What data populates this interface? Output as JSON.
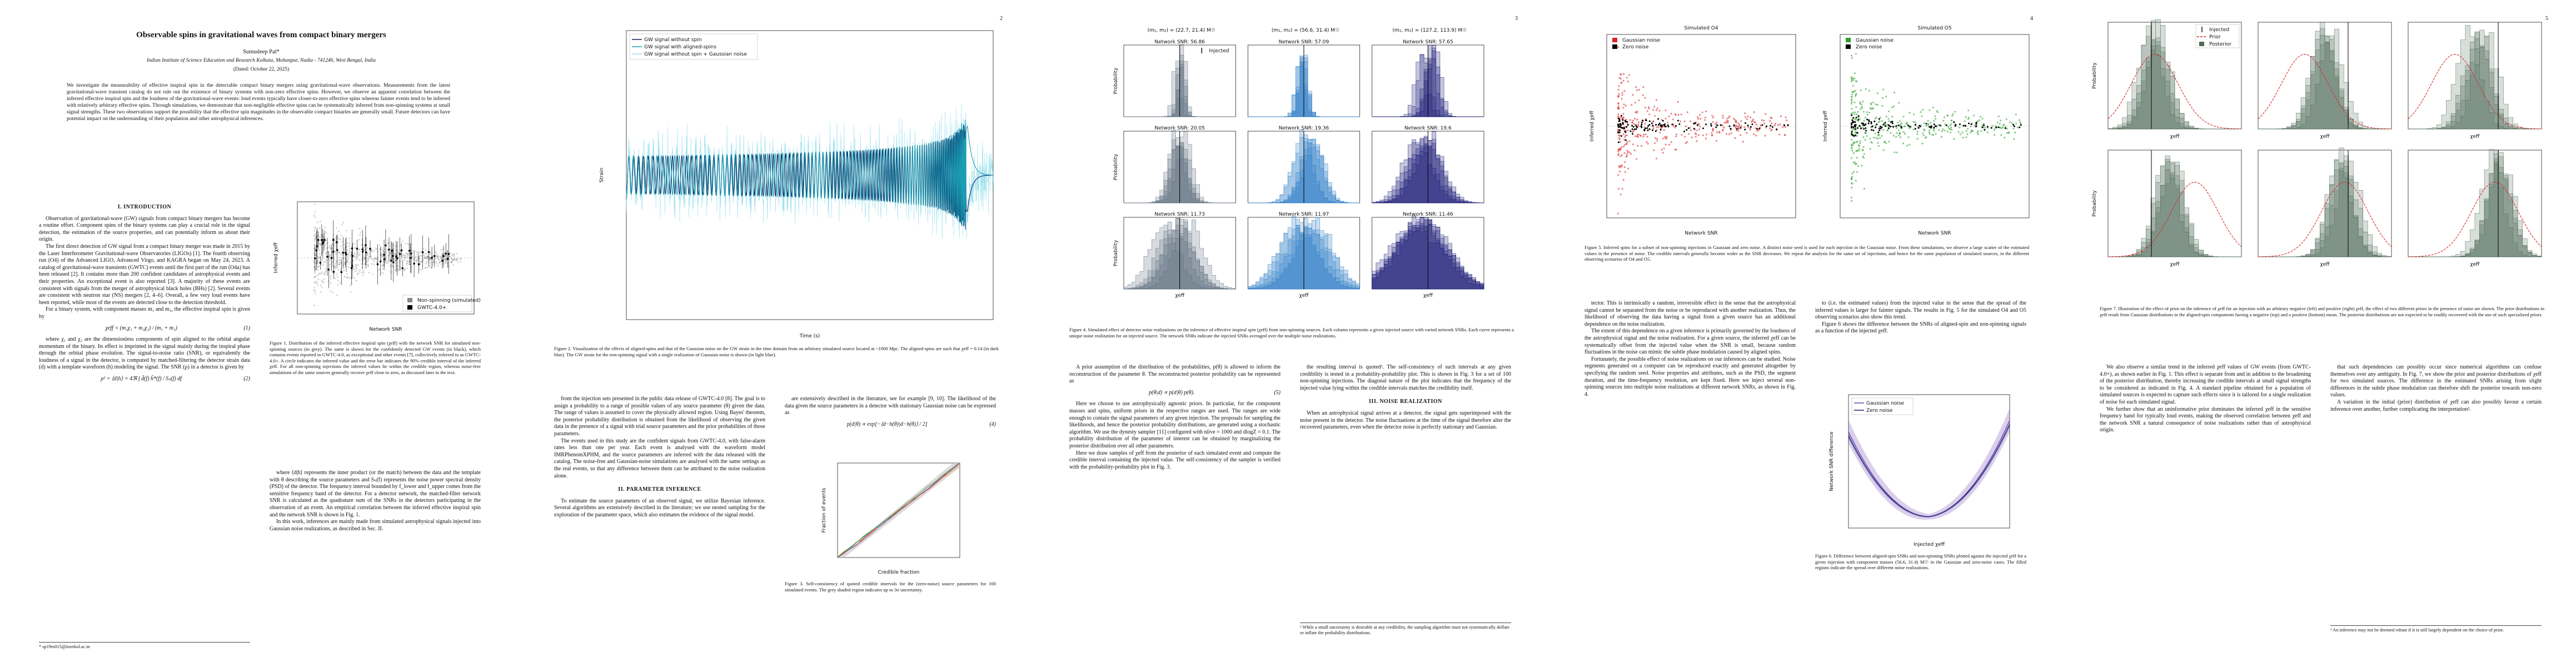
{
  "sidebar": "arXiv:2510.17449v1 [gr-qc] 20 Oct 2025",
  "pages": [
    {
      "title": "Observable spins in gravitational waves from compact binary mergers",
      "author": "Sumudeep Pal*",
      "affiliation": "Indian Institute of Science Education and Research Kolkata, Mohanpur, Nadia - 741246, West Bengal, India",
      "date": "(Dated: October 22, 2025)",
      "abstract": "We investigate the measurability of effective inspiral spin in the detectable compact binary mergers using gravitational-wave observations. Measurements from the latest gravitational-wave transient catalog do not rule out the existence of binary systems with non-zero effective spins. However, we observe an apparent correlation between the inferred effective inspiral spin and the loudness of the gravitational-wave events: loud events typically have closer-to-zero effective spins whereas fainter events tend to be inferred with relatively arbitrary effective spins. Through simulations, we demonstrate that non-negligible effective spins can be systematically inferred from non-spinning systems at small signal strengths. These two observations support the possibility that the effective spin magnitudes in the observable compact binaries are generally small. Future detectors can have potential impact on the understanding of their population and other astrophysical inferences.",
      "columns": [
        [
          {
            "heading": "I. INTRODUCTION"
          },
          {
            "text": "Observation of gravitational-wave (GW) signals from compact binary mergers has become a routine effort. Component spins of the binary systems can play a crucial role in the signal detection, the estimation of the source properties, and can potentially inform us about their origin."
          },
          {
            "text": "The first direct detection of GW signal from a compact binary merger was made in 2015 by the Laser Interferometer Gravitational-wave Observatories (LIGOs) [1]. The fourth observing run (O4) of the Advanced LIGO, Advanced Virgo, and KAGRA began on May 24, 2023. A catalog of gravitational-wave transients (GWTC) events until the first part of the run (O4a) has been released [2]. It contains more than 200 confident candidates of astrophysical events and their properties. An exceptional event is also reported [3]. A majority of these events are consistent with signals from the merger of astrophysical black holes (BHs) [2]. Several events are consistent with neutron star (NS) mergers [2, 4–6]. Overall, a few very loud events have been reported, while most of the events are detected close to the detection threshold."
          },
          {
            "text": "For a binary system, with component masses m₁ and m₂, the effective inspiral spin is given by"
          },
          {
            "equation": "χeff = (m₁χ₁ + m₂χ₂) / (m₁ + m₂)",
            "tag": "(1)"
          },
          {
            "text": "where χ₁ and χ₂ are the dimensionless components of spin aligned to the orbital angular momentum of the binary. Its effect is imprinted in the signal mainly during the inspiral phase through the orbital phase evolution. The signal-to-noise ratio (SNR), or equivalently the loudness of a signal in the detector, is computed by matched-filtering the detector strain data (d) with a template waveform (h) modeling the signal. The SNR (ρ) in a detector is given by"
          },
          {
            "equation": "ρ² = ⟨d|h⟩ = 4ℜ ∫ d̃(f) h̃*(f) / Sₙ(f) df",
            "tag": "(2)"
          }
        ],
        [
          {
            "text": "where ⟨d|h⟩ represents the inner product (or the match) between the data and the template with θ describing the source parameters and Sₙ(f) represents the noise power spectral density (PSD) of the detector. The frequency interval bounded by f_lower and f_upper comes from the sensitive frequency band of the detector. For a detector network, the matched-filter network SNR is calculated as the quadrature sum of the SNRs in the detectors participating in the observation of an event. An empirical correlation between the inferred effective inspiral spin and the network SNR is shown in Fig. 1."
          },
          {
            "text": "In this work, inferences are mainly made from simulated astrophysical signals injected into Gaussian noise realizations, as described in Sec. II."
          }
        ]
      ],
      "figures": [
        {
          "caption": "Figure 1. Distribution of the inferred effective inspiral spin (χeff) with the network SNR for simulated non-spinning sources (in grey). The same is shown for the confidently detected GW events (in black), which contains events reported in GWTC-4.0, as exceptional and other events [7], collectively referred to as GWTC-4.0+. A circle indicates the inferred value and the error bar indicates the 90% credible interval of the inferred χeff. For all non-spinning injections the inferred values lie within the credible region, whereas noise-free simulations of the same sources generally recover χeff close to zero, as discussed later in the text.",
          "xlabel": "Network SNR",
          "ylabel": "Inferred χeff",
          "legend": [
            "Non-spinning (simulated)",
            "GWTC-4.0+"
          ]
        }
      ],
      "footnotes": [
        "* sp19rs015@iiserkol.ac.in"
      ]
    },
    {
      "number": "2",
      "columns": [
        [
          {
            "text": "from the injection sets presented in the public data release of GWTC-4.0 [8]. The goal is to assign a probability to a range of possible values of any source parameter (θ) given the data. The range of values is assumed to cover the physically allowed region. Using Bayes' theorem, the posterior probability distribution is obtained from the likelihood of observing the given data in the presence of a signal with trial source parameters and the prior probabilities of those parameters."
          },
          {
            "text": "The events used in this study are the confident signals from GWTC-4.0, with false-alarm rates less than one per year. Each event is analysed with the waveform model IMRPhenomXPHM, and the source parameters are inferred with the data released with the catalog. The noise-free and Gaussian-noise simulations are analysed with the same settings as the real events, so that any difference between them can be attributed to the noise realization alone."
          },
          {
            "heading": "II. PARAMETER INFERENCE"
          },
          {
            "text": "To estimate the source parameters of an observed signal, we utilize Bayesian inference. Several algorithms are extensively described in the literature; we use nested sampling for the exploration of the parameter space, which also estimates the evidence of the signal model."
          }
        ],
        [
          {
            "text": "are extensively described in the literature, see for example [9, 10]. The likelihood of the data given the source parameters in a detector with stationary Gaussian noise can be expressed as"
          },
          {
            "equation": "p(d|θ) ∝ exp[−⟨d−h(θ)|d−h(θ)⟩ / 2]",
            "tag": "(4)"
          }
        ]
      ],
      "figures": [
        {
          "caption": "Figure 2. Visualization of the effects of aligned-spins and that of the Gaussian noise on the GW strain in the time domain from an arbitrary simulated source located at ~1000 Mpc. The aligned-spins are such that χeff = 0.14 (in dark blue). The GW strain for the non-spinning signal with a single realization of Gaussian noise is shown (in light blue).",
          "xlabel": "Time (s)",
          "ylabel": "Strain",
          "legend": [
            "GW signal without spin",
            "GW signal with aligned-spins",
            "GW signal without spin + Gaussian noise"
          ]
        },
        {
          "caption": "Figure 3. Self-consistency of quoted credible intervals for the (zero-noise) source parameters for 100 simulated events. The grey shaded region indicates up to 3σ uncertainty.",
          "xlabel": "Credible fraction",
          "ylabel": "Fraction of events"
        }
      ]
    },
    {
      "number": "3",
      "columns": [
        [
          {
            "text": "A prior assumption of the distribution of the probabilities, p(θ) is allowed to inform the reconstruction of the parameter θ. The reconstructed posterior probability can be represented as"
          },
          {
            "equation": "p(θ|d) ∝ p(d|θ) p(θ).",
            "tag": "(5)"
          },
          {
            "text": "Here we choose to use astrophysically agnostic priors. In particular, for the component masses and spins, uniform priors in the respective ranges are used. The ranges are wide enough to contain the signal parameters of any given injection. The proposals for sampling the likelihoods, and hence the posterior probability distributions, are generated using a stochastic algorithm. We use the dynesty sampler [11] configured with nlive = 1000 and dlogZ = 0.1. The probability distribution of the parameter of interest can be obtained by marginalizing the posterior distribution over all other parameters."
          },
          {
            "text": "Here we draw samples of χeff from the posterior of each simulated event and compute the credible interval containing the injected value. The self-consistency of the sampler is verified with the probability-probability plot in Fig. 3."
          }
        ],
        [
          {
            "text": "the resulting interval is quoted¹. The self-consistency of such intervals at any given credibility is tested in a probability-probability plot. This is shown in Fig. 3 for a set of 100 non-spinning injections. The diagonal nature of the plot indicates that the frequency of the injected value lying within the credible intervals matches the credibility itself."
          },
          {
            "heading": "III. NOISE REALIZATION"
          },
          {
            "text": "When an astrophysical signal arrives at a detector, the signal gets superimposed with the noise present in the detector. The noise fluctuations at the time of the signal therefore alter the recovered parameters, even when the detector noise is perfectly stationary and Gaussian."
          }
        ]
      ],
      "figures": [
        {
          "caption": "Figure 4. Simulated effect of detector noise realizations on the inference of effective inspiral spin (χeff) from non-spinning sources. Each column represents a given injected source with varied network SNRs. Each curve represents a unique noise realization for an injected source. The network SNRs indicate the injected SNRs averaged over the multiple noise realizations.",
          "xlabel": "χeff",
          "ylabel": "Probability",
          "titles": [
            "(m₁, m₂) = (22.7, 21.4) M☉",
            "(m₁, m₂) = (56.6, 31.4) M☉",
            "(m₁, m₂) = (127.2, 113.9) M☉"
          ],
          "panels": [
            "Network SNR: 56.86",
            "Network SNR: 57.09",
            "Network SNR: 57.65",
            "Network SNR: 20.05",
            "Network SNR: 19.36",
            "Network SNR: 19.6",
            "Network SNR: 11.73",
            "Network SNR: 11.97",
            "Network SNR: 11.46"
          ],
          "legend": [
            "Injected"
          ]
        }
      ],
      "footnotes": [
        "¹ While a small uncertainty is desirable at any credibility, the sampling algorithm must not systematically deflate or inflate the probability distributions."
      ]
    },
    {
      "number": "4",
      "columns": [
        [
          {
            "text": "tector. This is intrinsically a random, irreversible effect in the sense that the astrophysical signal cannot be separated from the noise or be reproduced with another realization. Thus, the likelihood of observing the data having a signal from a given source has an additional dependence on the noise realization."
          },
          {
            "text": "The extent of this dependence on a given inference is primarily governed by the loudness of the astrophysical signal and the noise realization. For a given source, the inferred χeff can be systematically offset from the injected value when the SNR is small, because random fluctuations in the noise can mimic the subtle phase modulation caused by aligned spins."
          },
          {
            "text": "Fortunately, the possible effect of noise realizations on our inferences can be studied. Noise segments generated on a computer can be reproduced exactly and generated altogether by specifying the random seed. Noise properties and attributes, such as the PSD, the segment duration, and the time-frequency resolution, are kept fixed. Here we inject several non-spinning sources into multiple noise realizations at different network SNRs, as shown in Fig. 4."
          }
        ],
        [
          {
            "text": "to (i.e. the estimated values) from the injected value in the sense that the spread of the inferred values is larger for fainter signals. The results in Fig. 5 for the simulated O4 and O5 observing scenarios also show this trend."
          },
          {
            "text": "Figure 6 shows the difference between the SNRs of aligned-spin and non-spinning signals as a function of the injected χeff."
          }
        ]
      ],
      "figures": [
        {
          "caption": "Figure 5. Inferred spins for a subset of non-spinning injections in Gaussian and zero noise. A distinct noise seed is used for each injection in the Gaussian noise. From these simulations, we observe a large scatter of the estimated values in the presence of noise. The credible intervals generally become wider as the SNR decreases. We repeat the analysis for the same set of injections, and hence for the same population of simulated sources, in the different observing scenarios of O4 and O5.",
          "xlabel": "Network SNR",
          "ylabel": "Inferred χeff",
          "titles": [
            "Simulated O4",
            "Simulated O5"
          ],
          "legend": [
            "Gaussian noise",
            "Zero noise"
          ]
        },
        {
          "caption": "Figure 6. Difference between aligned-spin SNRs and non-spinning SNRs plotted against the injected χeff for a given injection with component masses (56.6, 31.4) M☉ in the Gaussian and zero-noise cases. The filled regions indicate the spread over different noise realizations.",
          "xlabel": "Injected χeff",
          "ylabel": "Network SNR difference",
          "legend": [
            "Gaussian noise",
            "Zero noise"
          ]
        }
      ]
    },
    {
      "number": "5",
      "columns": [
        [
          {
            "text": "We also observe a similar trend in the inferred χeff values of GW events (from GWTC-4.0+), as shown earlier in Fig. 1. This effect is separate from and in addition to the broadening of the posterior distribution, thereby increasing the credible intervals at small signal strengths to be considered as indicated in Fig. 4. A standard pipeline obtained for a population of simulated sources is expected to capture such effects since it is tailored for a single realization of noise for each simulated signal."
          },
          {
            "text": "We further show that an uninformative prior dominates the inferred χeff in the sensitive frequency band for typically loud events, making the observed correlation between χeff and the network SNR a natural consequence of noise realizations rather than of astrophysical origin."
          }
        ],
        [
          {
            "text": "that such dependencies can possibly occur since numerical algorithms can confuse themselves over any ambiguity. In Fig. 7, we show the prior and posterior distributions of χeff for two simulated sources. The difference in the estimated SNRs arising from slight differences in the subtle phase modulation can therefore shift the posterior towards non-zero values."
          },
          {
            "text": "A variation in the initial (prior) distribution of χeff can also possibly favour a certain inference over another, further complicating the interpretation²."
          }
        ]
      ],
      "figures": [
        {
          "caption": "Figure 7. Illustration of the effect of prior on the inference of χeff for an injection with an arbitrary negative (left) and positive (right) χeff, the effect of two different priors in the presence of noise are shown. The prior distributions in χeff result from Gaussian distributions in the aligned-spin components having a negative (top) and a positive (bottom) mean. The posterior distributions are not expected to be readily recovered with the use of such specialized priors.",
          "xlabel": "χeff",
          "ylabel": "Probability",
          "legend": [
            "Injected",
            "Prior",
            "Posterior"
          ]
        }
      ],
      "footnotes": [
        "² An inference may not be deemed robust if it is still largely dependent on the choice of prior."
      ]
    }
  ]
}
